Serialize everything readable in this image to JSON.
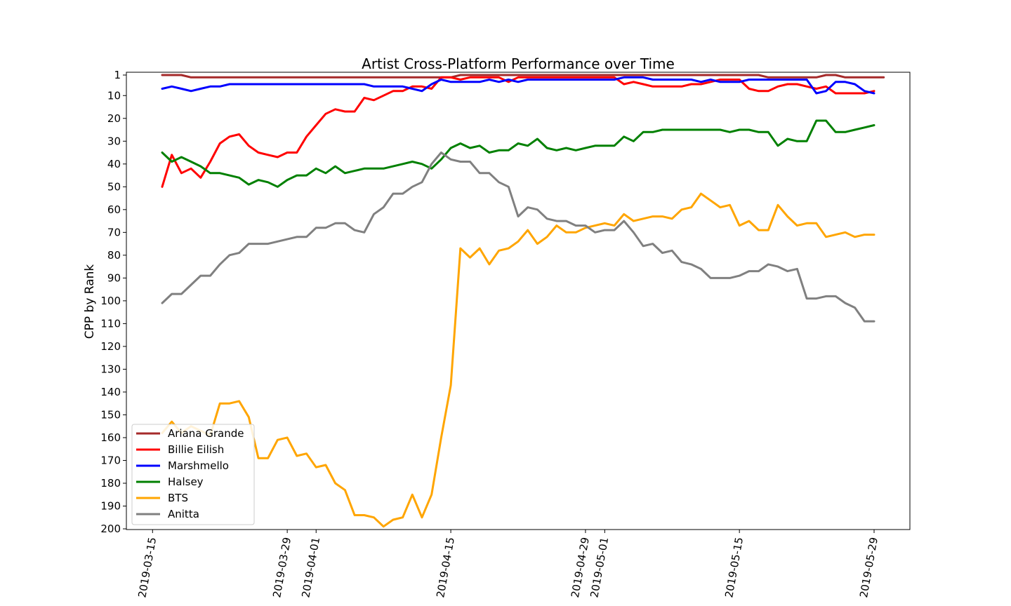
{
  "chart_data": {
    "type": "line",
    "title": "Artist Cross-Platform Performance over Time",
    "xlabel": "",
    "ylabel": "CPP by Rank",
    "y_inverted": true,
    "ylim": [
      200,
      1
    ],
    "yticks": [
      1,
      10,
      20,
      30,
      40,
      50,
      60,
      70,
      80,
      90,
      100,
      110,
      120,
      130,
      140,
      150,
      160,
      170,
      180,
      190,
      200
    ],
    "xlim_days": [
      -3,
      75
    ],
    "xticks": [
      {
        "label": "2019-03-15",
        "day": 0
      },
      {
        "label": "2019-03-29",
        "day": 14
      },
      {
        "label": "2019-04-01",
        "day": 17
      },
      {
        "label": "2019-04-15",
        "day": 31
      },
      {
        "label": "2019-04-29",
        "day": 45
      },
      {
        "label": "2019-05-01",
        "day": 47
      },
      {
        "label": "2019-05-15",
        "day": 61
      },
      {
        "label": "2019-05-29",
        "day": 75
      }
    ],
    "x_start_day": 1,
    "legend_position": "lower-left",
    "series": [
      {
        "name": "Ariana Grande",
        "color": "#a52a2a",
        "values": [
          1,
          1,
          1,
          2,
          2,
          2,
          2,
          2,
          2,
          2,
          2,
          2,
          2,
          2,
          2,
          2,
          2,
          2,
          2,
          2,
          2,
          2,
          2,
          2,
          2,
          2,
          2,
          2,
          2,
          2,
          2,
          1,
          1,
          1,
          1,
          1,
          1,
          1,
          1,
          1,
          1,
          1,
          1,
          1,
          1,
          1,
          1,
          1,
          1,
          1,
          1,
          1,
          1,
          1,
          1,
          1,
          1,
          1,
          1,
          1,
          1,
          1,
          1,
          2,
          2,
          2,
          2,
          2,
          2,
          1,
          1,
          2,
          2,
          2,
          2,
          2
        ]
      },
      {
        "name": "Billie Eilish",
        "color": "#ff0000",
        "values": [
          50,
          36,
          44,
          42,
          46,
          39,
          31,
          28,
          27,
          32,
          35,
          36,
          37,
          35,
          35,
          28,
          23,
          18,
          16,
          17,
          17,
          11,
          12,
          10,
          8,
          8,
          6,
          6,
          7,
          2,
          2,
          3,
          2,
          2,
          2,
          2,
          4,
          2,
          2,
          2,
          2,
          2,
          2,
          2,
          2,
          2,
          2,
          2,
          5,
          4,
          5,
          6,
          6,
          6,
          6,
          5,
          5,
          4,
          3,
          3,
          3,
          7,
          8,
          8,
          6,
          5,
          5,
          6,
          7,
          6,
          9,
          9,
          9,
          9,
          8
        ]
      },
      {
        "name": "Marshmello",
        "color": "#0000ff",
        "values": [
          7,
          6,
          7,
          8,
          7,
          6,
          6,
          5,
          5,
          5,
          5,
          5,
          5,
          5,
          5,
          5,
          5,
          5,
          5,
          5,
          5,
          5,
          6,
          6,
          6,
          6,
          7,
          8,
          5,
          3,
          4,
          4,
          4,
          4,
          3,
          4,
          3,
          4,
          3,
          3,
          3,
          3,
          3,
          3,
          3,
          3,
          3,
          3,
          2,
          2,
          2,
          3,
          3,
          3,
          3,
          3,
          4,
          3,
          4,
          4,
          4,
          3,
          3,
          3,
          3,
          3,
          3,
          3,
          9,
          8,
          4,
          4,
          5,
          8,
          9
        ]
      },
      {
        "name": "Halsey",
        "color": "#008000",
        "values": [
          35,
          39,
          37,
          39,
          41,
          44,
          44,
          45,
          46,
          49,
          47,
          48,
          50,
          47,
          45,
          45,
          42,
          44,
          41,
          44,
          43,
          42,
          42,
          42,
          41,
          40,
          39,
          40,
          42,
          38,
          33,
          31,
          33,
          32,
          35,
          34,
          34,
          31,
          32,
          29,
          33,
          34,
          33,
          34,
          33,
          32,
          32,
          32,
          28,
          30,
          26,
          26,
          25,
          25,
          25,
          25,
          25,
          25,
          25,
          26,
          25,
          25,
          26,
          26,
          32,
          29,
          30,
          30,
          21,
          21,
          26,
          26,
          25,
          24,
          23
        ]
      },
      {
        "name": "BTS",
        "color": "#ffa500",
        "values": [
          158,
          153,
          158,
          155,
          157,
          159,
          145,
          145,
          144,
          151,
          169,
          169,
          161,
          160,
          168,
          167,
          173,
          172,
          180,
          183,
          194,
          194,
          195,
          199,
          196,
          195,
          185,
          195,
          185,
          160,
          137,
          77,
          81,
          77,
          84,
          78,
          77,
          74,
          69,
          75,
          72,
          67,
          70,
          70,
          68,
          67,
          66,
          67,
          62,
          65,
          64,
          63,
          63,
          64,
          60,
          59,
          53,
          56,
          59,
          58,
          67,
          65,
          69,
          69,
          58,
          63,
          67,
          66,
          66,
          72,
          71,
          70,
          72,
          71,
          71
        ]
      },
      {
        "name": "Anitta",
        "color": "#808080",
        "values": [
          101,
          97,
          97,
          93,
          89,
          89,
          84,
          80,
          79,
          75,
          75,
          75,
          74,
          73,
          72,
          72,
          68,
          68,
          66,
          66,
          69,
          70,
          62,
          59,
          53,
          53,
          50,
          48,
          40,
          35,
          38,
          39,
          39,
          44,
          44,
          48,
          50,
          63,
          59,
          60,
          64,
          65,
          65,
          67,
          67,
          70,
          69,
          69,
          65,
          70,
          76,
          75,
          79,
          78,
          83,
          84,
          86,
          90,
          90,
          90,
          89,
          87,
          87,
          84,
          85,
          87,
          86,
          99,
          99,
          98,
          98,
          101,
          103,
          109,
          109
        ]
      }
    ]
  }
}
